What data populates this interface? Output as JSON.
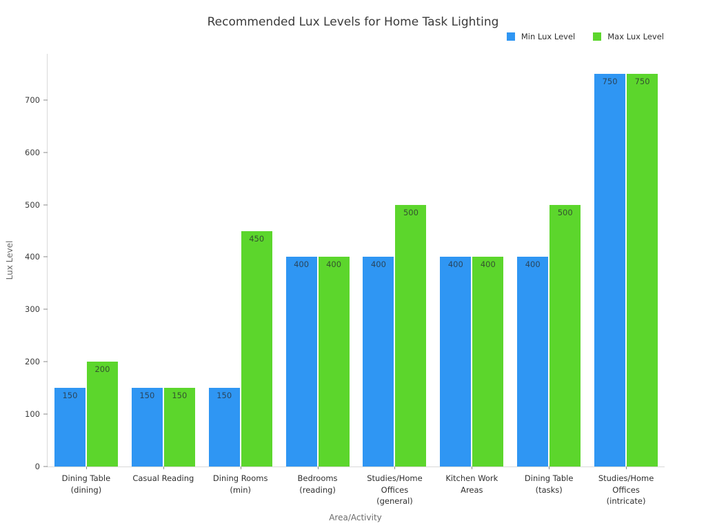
{
  "title": "Recommended Lux Levels for Home Task Lighting",
  "colors": {
    "min_series": "#2f96f3",
    "max_series": "#5cd62c",
    "spine": "#d9d9d9",
    "tick": "#8a8a8a",
    "title_text": "#3a3a3a",
    "axis_title_text": "#6b6b6b"
  },
  "chart_data": {
    "type": "bar",
    "title": "Recommended Lux Levels for Home Task Lighting",
    "xlabel": "Area/Activity",
    "ylabel": "Lux Level",
    "categories": [
      "Dining Table\n(dining)",
      "Casual Reading",
      "Dining Rooms\n(min)",
      "Bedrooms\n(reading)",
      "Studies/Home\nOffices\n(general)",
      "Kitchen Work\nAreas",
      "Dining Table\n(tasks)",
      "Studies/Home\nOffices\n(intricate)"
    ],
    "series": [
      {
        "name": "Min Lux Level",
        "color": "#2f96f3",
        "values": [
          150,
          150,
          150,
          400,
          400,
          400,
          400,
          750
        ]
      },
      {
        "name": "Max Lux Level",
        "color": "#5cd62c",
        "values": [
          200,
          150,
          450,
          400,
          500,
          400,
          500,
          750
        ]
      }
    ],
    "ylim": [
      0,
      788
    ],
    "yticks": [
      0,
      100,
      200,
      300,
      400,
      500,
      600,
      700
    ],
    "grid": false,
    "legend_position": "top-right",
    "bar_labels": true
  }
}
